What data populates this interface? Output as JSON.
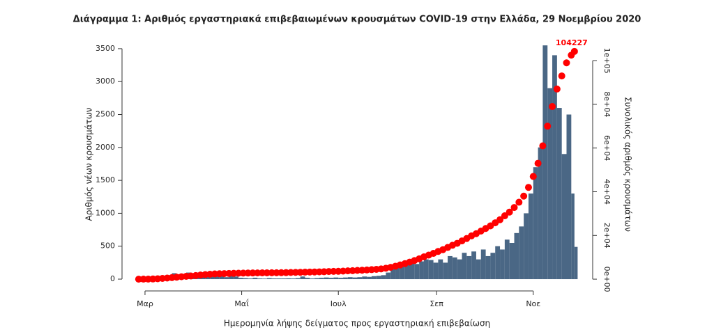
{
  "chart_data": {
    "type": "bar",
    "title": "Διάγραμμα 1: Αριθμός εργαστηριακά επιβεβαιωμένων κρουσμάτων COVID-19 στην Ελλάδα, 29 Νοεμβρίου 2020",
    "x_label": "Ημερομηνία λήψης δείγματος προς εργαστηριακή επιβεβαίωση",
    "y_label": "Αριθμός νέων κρουσμάτων",
    "y2_label": "Συνολικός αριθμός κρουσμάτων",
    "x": [
      57,
      60,
      63,
      66,
      69,
      72,
      75,
      78,
      81,
      84,
      87,
      90,
      93,
      96,
      99,
      102,
      105,
      108,
      111,
      114,
      117,
      120,
      123,
      126,
      129,
      132,
      135,
      138,
      141,
      144,
      147,
      150,
      153,
      156,
      159,
      162,
      165,
      168,
      171,
      174,
      177,
      180,
      183,
      186,
      189,
      192,
      195,
      198,
      201,
      204,
      207,
      210,
      213,
      216,
      219,
      222,
      225,
      228,
      231,
      234,
      237,
      240,
      243,
      246,
      249,
      252,
      255,
      258,
      261,
      264,
      267,
      270,
      273,
      276,
      279,
      282,
      285,
      288,
      291,
      294,
      297,
      300,
      303,
      306,
      309,
      312,
      315,
      318,
      321,
      324,
      327,
      330,
      332
    ],
    "series": [
      {
        "color": "#4a6785",
        "values": [
          3,
          2,
          10,
          20,
          40,
          50,
          60,
          90,
          70,
          80,
          100,
          60,
          100,
          80,
          60,
          90,
          120,
          50,
          30,
          60,
          40,
          20,
          15,
          10,
          20,
          10,
          8,
          15,
          10,
          10,
          10,
          12,
          10,
          15,
          40,
          20,
          10,
          15,
          20,
          25,
          20,
          25,
          20,
          25,
          30,
          25,
          30,
          40,
          35,
          45,
          50,
          60,
          100,
          150,
          180,
          200,
          220,
          260,
          230,
          270,
          300,
          290,
          250,
          300,
          250,
          350,
          330,
          300,
          400,
          350,
          420,
          300,
          450,
          350,
          400,
          500,
          450,
          600,
          550,
          700,
          800,
          1000,
          1300,
          1700,
          2000,
          3550,
          2900,
          3400,
          2600,
          1900,
          2500,
          1300,
          490
        ]
      },
      {
        "color": "#ff0000",
        "axis": "y2",
        "values": [
          0,
          10,
          30,
          90,
          200,
          350,
          500,
          700,
          900,
          1100,
          1300,
          1450,
          1650,
          1900,
          2100,
          2250,
          2400,
          2500,
          2550,
          2600,
          2680,
          2720,
          2760,
          2800,
          2840,
          2860,
          2880,
          2900,
          2920,
          2940,
          2960,
          3000,
          3050,
          3100,
          3150,
          3200,
          3250,
          3300,
          3350,
          3400,
          3500,
          3550,
          3600,
          3700,
          3800,
          3900,
          4000,
          4100,
          4200,
          4350,
          4500,
          4700,
          5000,
          5400,
          5900,
          6500,
          7100,
          7800,
          8500,
          9300,
          10200,
          11000,
          11800,
          12700,
          13500,
          14500,
          15500,
          16400,
          17500,
          18600,
          19800,
          20800,
          22000,
          23200,
          24400,
          25800,
          27200,
          29000,
          30700,
          32800,
          35200,
          38000,
          42000,
          47000,
          53000,
          61000,
          70000,
          79000,
          87000,
          93000,
          99000,
          102500,
          104227
        ]
      }
    ],
    "xlim": [
      46.5,
      343.5
    ],
    "xticks": [
      {
        "value": 61,
        "label": "Μαρ"
      },
      {
        "value": 122,
        "label": "Μαΐ"
      },
      {
        "value": 183,
        "label": "Ιουλ"
      },
      {
        "value": 245,
        "label": "Σεπ"
      },
      {
        "value": 306,
        "label": "Νοε"
      }
    ],
    "ylim": [
      -100,
      3700
    ],
    "yticks": [
      0,
      500,
      1000,
      1500,
      2000,
      2500,
      3000,
      3500
    ],
    "y2lim": [
      -3000,
      111500
    ],
    "y2ticks": [
      {
        "value": 0,
        "label": "0e+00"
      },
      {
        "value": 20000,
        "label": "2e+04"
      },
      {
        "value": 40000,
        "label": "4e+04"
      },
      {
        "value": 60000,
        "label": "6e+04"
      },
      {
        "value": 80000,
        "label": "8e+04"
      },
      {
        "value": 100000,
        "label": "1e+05"
      }
    ]
  }
}
